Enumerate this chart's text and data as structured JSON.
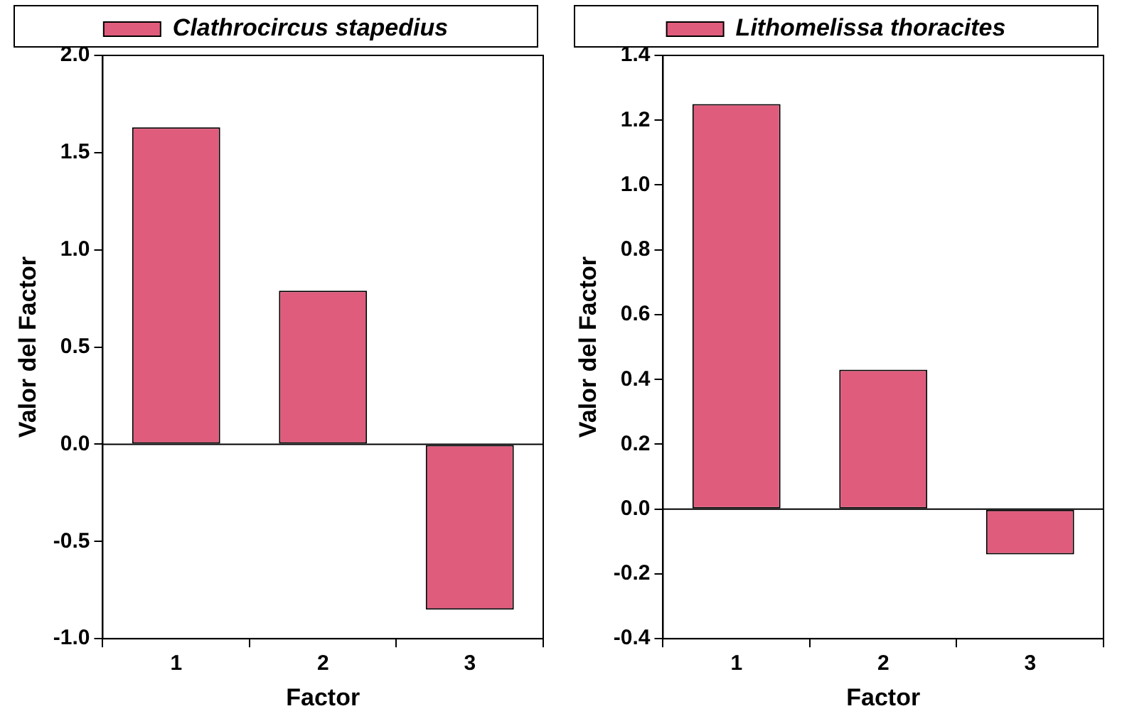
{
  "chart_data": [
    {
      "type": "bar",
      "xlabel": "Factor",
      "ylabel": "Valor del Factor",
      "categories": [
        "1",
        "2",
        "3"
      ],
      "series": [
        {
          "name": "Clathrocircus stapedius",
          "color": "#e05c7c",
          "values": [
            1.63,
            0.79,
            -0.85
          ]
        }
      ],
      "ylim": [
        -1.0,
        2.0
      ],
      "yticks": [
        {
          "value": -1,
          "label": "-1.0"
        },
        {
          "value": -0.5,
          "label": "-0.5"
        },
        {
          "value": 0,
          "label": "0.0"
        },
        {
          "value": 0.5,
          "label": "0.5"
        },
        {
          "value": 1,
          "label": "1.0"
        },
        {
          "value": 1.5,
          "label": "1.5"
        },
        {
          "value": 2,
          "label": "2.0"
        }
      ],
      "ref_lines": [
        {
          "axis": "y",
          "value": 0
        }
      ],
      "grid": false,
      "legend": "top"
    },
    {
      "type": "bar",
      "xlabel": "Factor",
      "ylabel": "Valor del Factor",
      "categories": [
        "1",
        "2",
        "3"
      ],
      "series": [
        {
          "name": "Lithomelissa thoracites",
          "color": "#e05c7c",
          "values": [
            1.25,
            0.43,
            -0.14
          ]
        }
      ],
      "ylim": [
        -0.4,
        1.4
      ],
      "yticks": [
        {
          "value": -0.4,
          "label": "-0.4"
        },
        {
          "value": -0.2,
          "label": "-0.2"
        },
        {
          "value": 0,
          "label": "0.0"
        },
        {
          "value": 0.2,
          "label": "0.2"
        },
        {
          "value": 0.4,
          "label": "0.4"
        },
        {
          "value": 0.6,
          "label": "0.6"
        },
        {
          "value": 0.8,
          "label": "0.8"
        },
        {
          "value": 1.0,
          "label": "1.0"
        },
        {
          "value": 1.2,
          "label": "1.2"
        },
        {
          "value": 1.4,
          "label": "1.4"
        }
      ],
      "ref_lines": [
        {
          "axis": "y",
          "value": 0
        }
      ],
      "grid": false,
      "legend": "top"
    }
  ]
}
